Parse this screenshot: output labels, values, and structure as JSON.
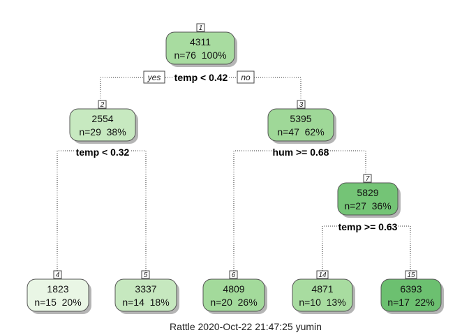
{
  "tree": {
    "nodes": [
      {
        "id": "1",
        "label_id": "1",
        "value": "4311",
        "stats": "n=76  100%",
        "color": "#a8dca0"
      },
      {
        "id": "2",
        "label_id": "2",
        "value": "2554",
        "stats": "n=29  38%",
        "color": "#c7e9c0"
      },
      {
        "id": "3",
        "label_id": "3",
        "value": "5395",
        "stats": "n=47  62%",
        "color": "#9fd898"
      },
      {
        "id": "7",
        "label_id": "7",
        "value": "5829",
        "stats": "n=27  36%",
        "color": "#74c476"
      },
      {
        "id": "4",
        "label_id": "4",
        "value": "1823",
        "stats": "n=15  20%",
        "color": "#e9f6e5"
      },
      {
        "id": "5",
        "label_id": "5",
        "value": "3337",
        "stats": "n=14  18%",
        "color": "#c6e8bf"
      },
      {
        "id": "6",
        "label_id": "6",
        "value": "4809",
        "stats": "n=20  26%",
        "color": "#a3da9b"
      },
      {
        "id": "14",
        "label_id": "14",
        "value": "4871",
        "stats": "n=10  13%",
        "color": "#a8dca0"
      },
      {
        "id": "15",
        "label_id": "15",
        "value": "6393",
        "stats": "n=17  22%",
        "color": "#6cc070"
      }
    ],
    "splits": [
      {
        "node": "1",
        "rule": "temp < 0.42"
      },
      {
        "node": "2",
        "rule": "temp < 0.32"
      },
      {
        "node": "3",
        "rule": "hum >= 0.68"
      },
      {
        "node": "7",
        "rule": "temp >= 0.63"
      }
    ],
    "branch_labels": {
      "yes": "yes",
      "no": "no"
    }
  },
  "caption": "Rattle 2020-Oct-22 21:47:25 yumin"
}
